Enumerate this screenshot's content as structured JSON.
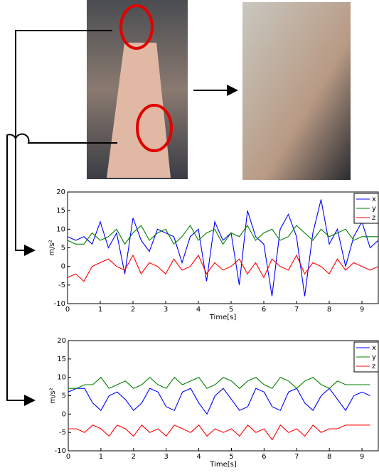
{
  "chart_data": [
    {
      "type": "line",
      "xlabel": "Time[s]",
      "ylabel": "m/s²",
      "xlim": [
        0,
        9.5
      ],
      "ylim": [
        -10,
        20
      ],
      "xticks": [
        0,
        1,
        2,
        3,
        4,
        5,
        6,
        7,
        8,
        9
      ],
      "yticks": [
        -10,
        -5,
        0,
        5,
        10,
        15,
        20
      ],
      "x": [
        0,
        0.25,
        0.5,
        0.75,
        1,
        1.25,
        1.5,
        1.75,
        2,
        2.25,
        2.5,
        2.75,
        3,
        3.25,
        3.5,
        3.75,
        4,
        4.25,
        4.5,
        4.75,
        5,
        5.25,
        5.5,
        5.75,
        6,
        6.25,
        6.5,
        6.75,
        7,
        7.25,
        7.5,
        7.75,
        8,
        8.25,
        8.5,
        8.75,
        9,
        9.25,
        9.5
      ],
      "series": [
        {
          "name": "x",
          "color": "#0000ff",
          "values": [
            8,
            7,
            8,
            6,
            12,
            5,
            9,
            -2,
            13,
            7,
            4,
            10,
            9,
            8,
            1,
            8,
            10,
            -4,
            12,
            7,
            9,
            -5,
            15,
            8,
            6,
            -8,
            10,
            14,
            8,
            -8,
            9,
            18,
            6,
            10,
            0,
            8,
            12,
            5,
            7
          ]
        },
        {
          "name": "y",
          "color": "#008000",
          "values": [
            7,
            6,
            6,
            9,
            7,
            8,
            10,
            6,
            9,
            11,
            7,
            9,
            10,
            6,
            8,
            11,
            7,
            9,
            10,
            6,
            9,
            8,
            11,
            7,
            9,
            10,
            7,
            8,
            11,
            9,
            7,
            10,
            8,
            9,
            10,
            7,
            8,
            8,
            8
          ]
        },
        {
          "name": "z",
          "color": "#ff0000",
          "values": [
            -3,
            -2,
            -4,
            0,
            1,
            2,
            0,
            -1,
            3,
            -2,
            1,
            0,
            -2,
            2,
            -1,
            0,
            3,
            -2,
            1,
            -1,
            0,
            2,
            -2,
            1,
            -3,
            2,
            0,
            -1,
            3,
            -2,
            1,
            0,
            -2,
            2,
            -1,
            1,
            0,
            -1,
            0
          ]
        }
      ]
    },
    {
      "type": "line",
      "xlabel": "Time[s]",
      "ylabel": "m/s²",
      "xlim": [
        0,
        9.5
      ],
      "ylim": [
        -10,
        20
      ],
      "xticks": [
        0,
        1,
        2,
        3,
        4,
        5,
        6,
        7,
        8,
        9
      ],
      "yticks": [
        -10,
        -5,
        0,
        5,
        10,
        15,
        20
      ],
      "x": [
        0,
        0.25,
        0.5,
        0.75,
        1,
        1.25,
        1.5,
        1.75,
        2,
        2.25,
        2.5,
        2.75,
        3,
        3.25,
        3.5,
        3.75,
        4,
        4.25,
        4.5,
        4.75,
        5,
        5.25,
        5.5,
        5.75,
        6,
        6.25,
        6.5,
        6.75,
        7,
        7.25,
        7.5,
        7.75,
        8,
        8.25,
        8.5,
        8.75,
        9,
        9.25
      ],
      "series": [
        {
          "name": "x",
          "color": "#0000ff",
          "values": [
            6,
            7,
            7,
            3,
            1,
            5,
            6,
            4,
            1,
            3,
            7,
            6,
            2,
            1,
            6,
            7,
            3,
            0,
            5,
            7,
            4,
            1,
            2,
            7,
            6,
            2,
            1,
            6,
            7,
            3,
            1,
            5,
            7,
            4,
            1,
            5,
            6,
            5
          ]
        },
        {
          "name": "y",
          "color": "#008000",
          "values": [
            7,
            7,
            8,
            8,
            10,
            7,
            8,
            9,
            7,
            8,
            10,
            8,
            7,
            10,
            8,
            9,
            10,
            7,
            8,
            10,
            9,
            7,
            9,
            10,
            8,
            7,
            10,
            9,
            7,
            9,
            10,
            8,
            7,
            9,
            8,
            8,
            8,
            8
          ]
        },
        {
          "name": "z",
          "color": "#ff0000",
          "values": [
            -4,
            -4,
            -5,
            -3,
            -4,
            -6,
            -3,
            -4,
            -6,
            -3,
            -5,
            -4,
            -6,
            -3,
            -4,
            -5,
            -3,
            -6,
            -4,
            -5,
            -4,
            -6,
            -3,
            -5,
            -4,
            -7,
            -3,
            -5,
            -4,
            -6,
            -3,
            -5,
            -4,
            -4,
            -3,
            -3,
            -3,
            -3
          ]
        }
      ]
    }
  ]
}
